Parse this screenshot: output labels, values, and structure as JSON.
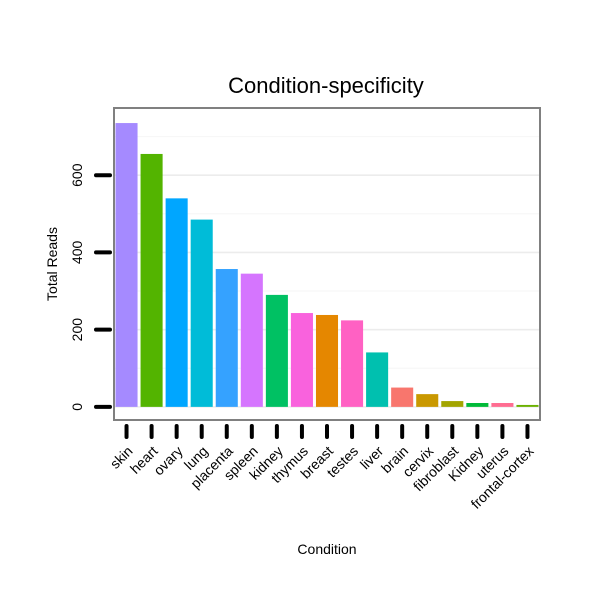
{
  "chart_data": {
    "type": "bar",
    "title": "Condition-specificity",
    "xlabel": "Condition",
    "ylabel": "Total Reads",
    "ylim": [
      -34,
      774
    ],
    "yticks": [
      0,
      200,
      400,
      600
    ],
    "grid": true,
    "legend": "none",
    "categories": [
      "skin",
      "heart",
      "ovary",
      "lung",
      "placenta",
      "spleen",
      "kidney",
      "thymus",
      "breast",
      "testes",
      "liver",
      "brain",
      "cervix",
      "fibroblast",
      "Kidney",
      "uterus",
      "frontal-cortex"
    ],
    "values": [
      735,
      655,
      540,
      485,
      357,
      345,
      290,
      243,
      238,
      224,
      141,
      50,
      33,
      15,
      10,
      10,
      5
    ],
    "colors": [
      "#A58AFF",
      "#53B400",
      "#00A6FF",
      "#00BCD8",
      "#35A2FF",
      "#D575FE",
      "#00C163",
      "#F962DD",
      "#E58700",
      "#FF61C3",
      "#00C0AF",
      "#F8766D",
      "#C99800",
      "#A3A500",
      "#00BA38",
      "#FF6C91",
      "#6BB100"
    ]
  }
}
